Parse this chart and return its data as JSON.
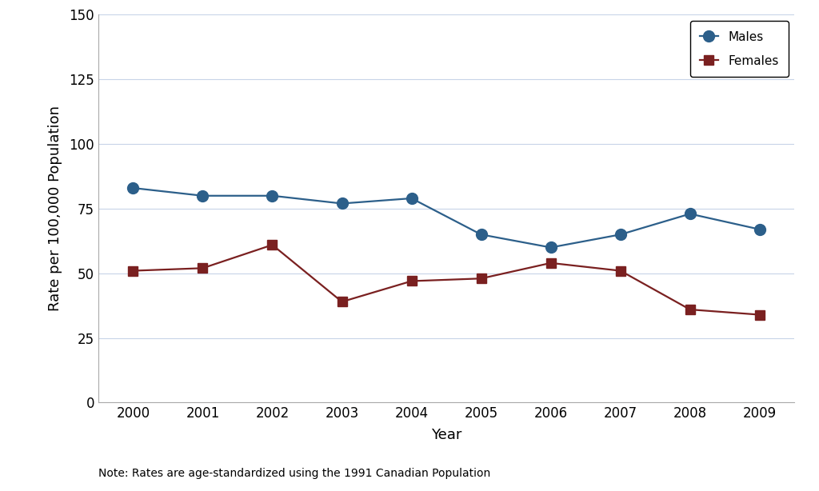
{
  "years": [
    2000,
    2001,
    2002,
    2003,
    2004,
    2005,
    2006,
    2007,
    2008,
    2009
  ],
  "males": [
    83,
    80,
    80,
    77,
    79,
    65,
    60,
    65,
    73,
    67
  ],
  "females": [
    51,
    52,
    61,
    39,
    47,
    48,
    54,
    51,
    36,
    34
  ],
  "male_color": "#2c5f8a",
  "female_color": "#7a2020",
  "male_label": "Males",
  "female_label": "Females",
  "xlabel": "Year",
  "ylabel": "Rate per 100,000 Population",
  "ylim": [
    0,
    150
  ],
  "yticks": [
    0,
    25,
    50,
    75,
    100,
    125,
    150
  ],
  "xlim": [
    1999.5,
    2009.5
  ],
  "note": "Note: Rates are age-standardized using the 1991 Canadian Population",
  "background_color": "#ffffff",
  "grid_color": "#c8d4e8",
  "line_width": 1.6,
  "marker_size_male": 10,
  "marker_size_female": 8,
  "tick_fontsize": 12,
  "label_fontsize": 13,
  "note_fontsize": 10
}
